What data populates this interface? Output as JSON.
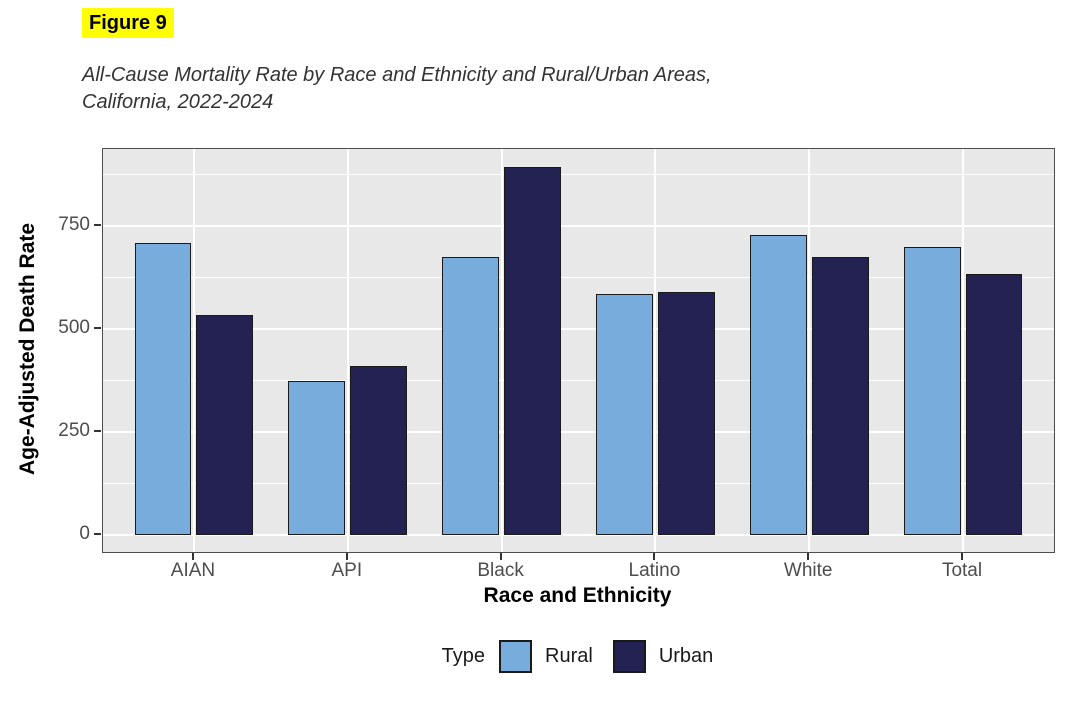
{
  "header": {
    "figure_label": "Figure 9",
    "subtitle_line1": "All-Cause Mortality Rate by Race and Ethnicity and Rural/Urban Areas,",
    "subtitle_line2": "California, 2022-2024"
  },
  "chart_data": {
    "type": "bar",
    "categories": [
      "AIAN",
      "API",
      "Black",
      "Latino",
      "White",
      "Total"
    ],
    "series": [
      {
        "name": "Rural",
        "color": "#77ACDD",
        "values": [
          710,
          375,
          675,
          585,
          730,
          700
        ]
      },
      {
        "name": "Urban",
        "color": "#232253",
        "values": [
          535,
          410,
          895,
          590,
          675,
          635
        ]
      }
    ],
    "xlabel": "Race and Ethnicity",
    "ylabel": "Age-Adjusted Death Rate",
    "yticks": [
      0,
      250,
      500,
      750
    ],
    "minor_gridlines": [
      125,
      375,
      625,
      875
    ],
    "ylim": [
      -42,
      938
    ],
    "legend_title": "Type",
    "legend_position": "bottom",
    "grid": true,
    "colors": {
      "panel_background": "#E8E8E8",
      "gridline": "#FFFFFF",
      "bar_outline": "#1A1A1A",
      "tick_label": "#4D4D4D",
      "highlight": "#FFFF00"
    }
  }
}
